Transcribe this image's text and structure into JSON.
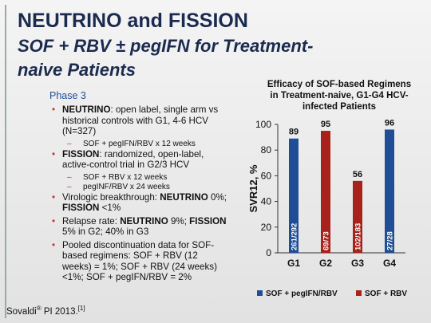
{
  "header": {
    "title": "NEUTRINO and FISSION",
    "subtitle_lines": [
      "SOF + RBV ± pegIFN for Treatment-",
      "naive Patients"
    ]
  },
  "phase": "Phase 3",
  "bullets": [
    {
      "runs": [
        {
          "text": "NEUTRINO",
          "bold": true
        },
        {
          "text": ": open label, single arm vs historical controls with G1, 4-6 HCV (N=327)"
        }
      ],
      "sub": [
        "SOF + pegIFN/RBV x 12 weeks"
      ]
    },
    {
      "runs": [
        {
          "text": "FISSION",
          "bold": true
        },
        {
          "text": ": randomized, open-label, active-control trial in G2/3 HCV"
        }
      ],
      "sub": [
        "SOF + RBV x 12 weeks",
        "pegINF/RBV x 24 weeks"
      ]
    },
    {
      "runs": [
        {
          "text": "Virologic breakthrough: "
        },
        {
          "text": "NEUTRINO",
          "bold": true
        },
        {
          "text": " 0%; "
        },
        {
          "text": "FISSION",
          "bold": true
        },
        {
          "text": " <1%"
        }
      ]
    },
    {
      "runs": [
        {
          "text": "Relapse rate: "
        },
        {
          "text": "NEUTRINO",
          "bold": true
        },
        {
          "text": " 9%; "
        },
        {
          "text": "FISSION",
          "bold": true
        },
        {
          "text": " 5% in G2; 40% in G3"
        }
      ]
    },
    {
      "runs": [
        {
          "text": "Pooled discontinuation data for SOF-based regimens: SOF + RBV (12 weeks) = 1%; SOF + RBV (24 weeks) <1%; SOF + pegIFN/RBV = 2%"
        }
      ]
    }
  ],
  "footer": {
    "parts": [
      "Sovaldi",
      "®",
      " PI 2013.",
      "[1]"
    ]
  },
  "chart_data": {
    "type": "bar",
    "title_lines": [
      "Efficacy of SOF-based Regimens",
      "in Treatment-naive, G1-G4 HCV-",
      "infected Patients"
    ],
    "y_label": "SVR12, %",
    "categories": [
      "G1",
      "G2",
      "G3",
      "G4"
    ],
    "series": [
      {
        "name": "SOF + pegIFN/RBV",
        "color": "#1f4e96",
        "values": [
          89,
          null,
          null,
          96
        ],
        "inner_labels": [
          "261/292",
          null,
          null,
          "27/28"
        ]
      },
      {
        "name": "SOF + RBV",
        "color": "#a8211b",
        "values": [
          null,
          95,
          56,
          null
        ],
        "inner_labels": [
          null,
          "69/73",
          "102/183",
          null
        ]
      }
    ],
    "ylim": [
      0,
      100
    ],
    "yticks": [
      0,
      20,
      40,
      60,
      80,
      100
    ]
  }
}
